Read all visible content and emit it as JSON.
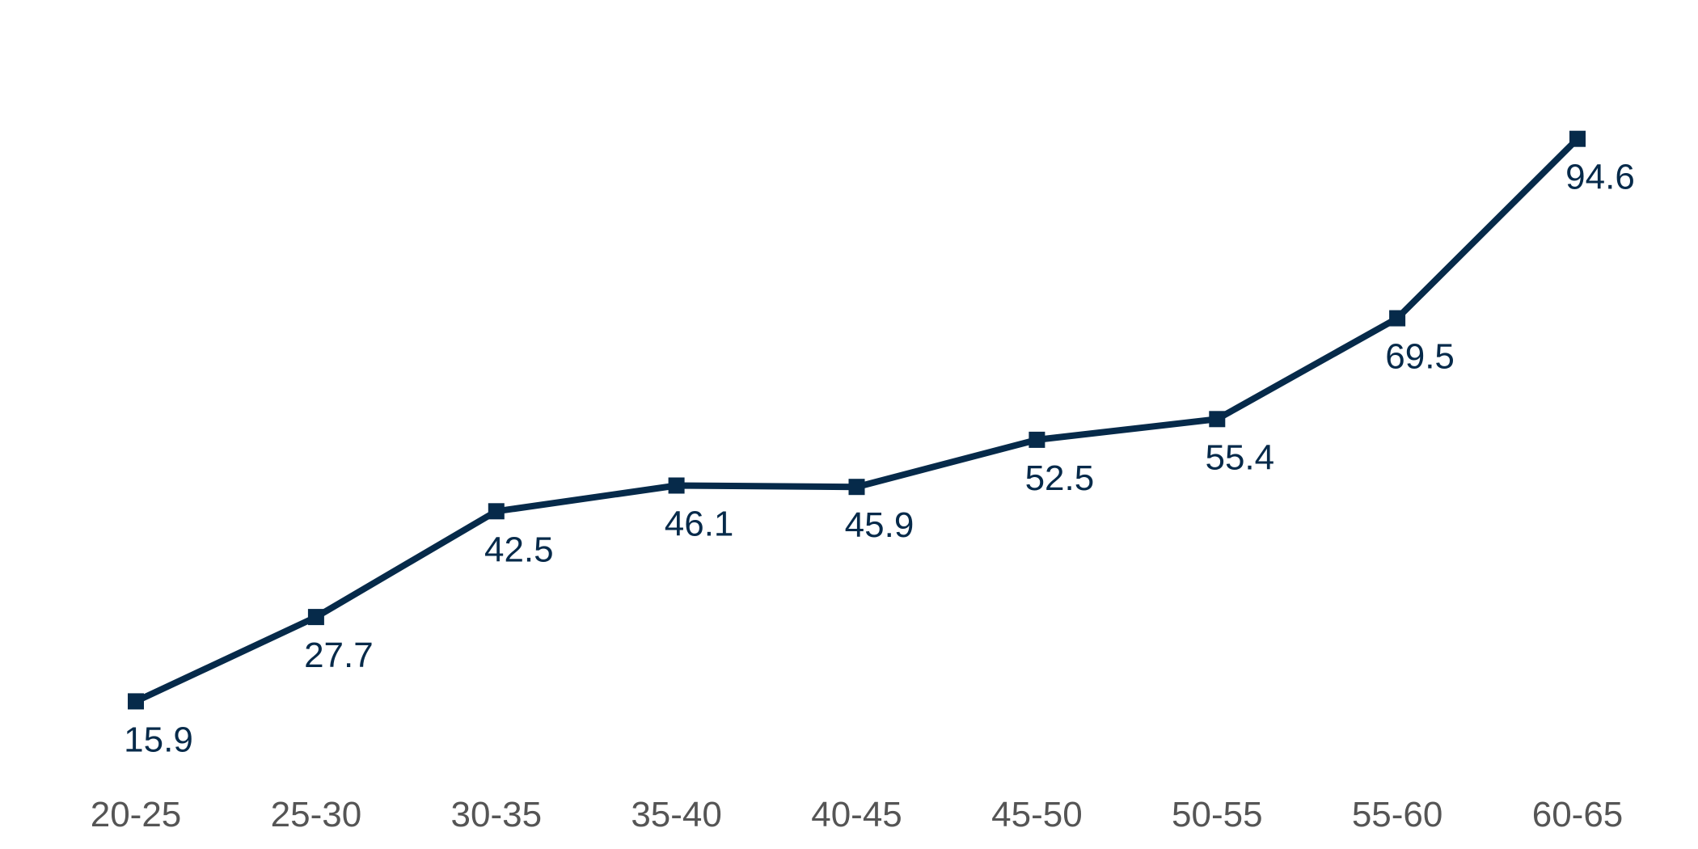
{
  "colors": {
    "line": "#062a4a",
    "marker": "#062a4a",
    "data_label": "#062a4a",
    "tick_label": "#555555",
    "background": "#ffffff"
  },
  "chart_data": {
    "type": "line",
    "title": "",
    "xlabel": "",
    "ylabel": "",
    "categories": [
      "20-25",
      "25-30",
      "30-35",
      "35-40",
      "40-45",
      "45-50",
      "50-55",
      "55-60",
      "60-65"
    ],
    "series": [
      {
        "values": [
          15.9,
          27.7,
          42.5,
          46.1,
          45.9,
          52.5,
          55.4,
          69.5,
          94.6
        ],
        "labels": [
          "15.9",
          "27.7",
          "42.5",
          "46.1",
          "45.9",
          "52.5",
          "55.4",
          "69.5",
          "94.6"
        ],
        "marker": "square"
      }
    ],
    "ylim": [
      0,
      110
    ],
    "grid": false,
    "legend": "none",
    "y_axis_visible": false
  }
}
